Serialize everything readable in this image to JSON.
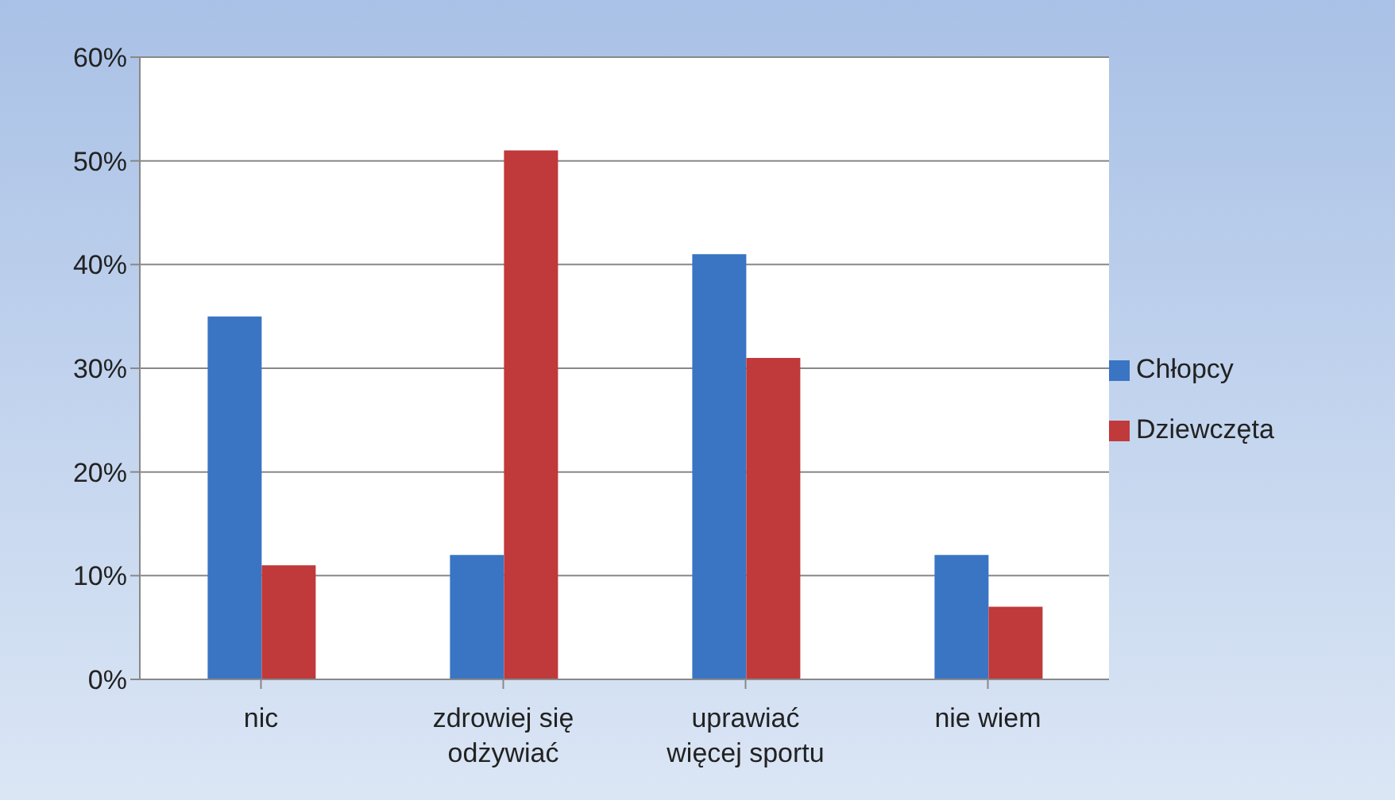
{
  "chart_data": {
    "type": "bar",
    "categories": [
      "nic",
      "zdrowiej się odżywiać",
      "uprawiać więcej sportu",
      "nie wiem"
    ],
    "series": [
      {
        "name": "Chłopcy",
        "color": "#3a75c4",
        "values": [
          35,
          12,
          41,
          12
        ]
      },
      {
        "name": "Dziewczęta",
        "color": "#c0393b",
        "values": [
          11,
          51,
          31,
          7
        ]
      }
    ],
    "ylim": [
      0,
      60
    ],
    "yticks": [
      {
        "value": 0,
        "label": "0%"
      },
      {
        "value": 10,
        "label": "10%"
      },
      {
        "value": 20,
        "label": "20%"
      },
      {
        "value": 30,
        "label": "30%"
      },
      {
        "value": 40,
        "label": "40%"
      },
      {
        "value": 50,
        "label": "50%"
      },
      {
        "value": 60,
        "label": "60%"
      }
    ],
    "grid": "y",
    "legend": "right"
  }
}
